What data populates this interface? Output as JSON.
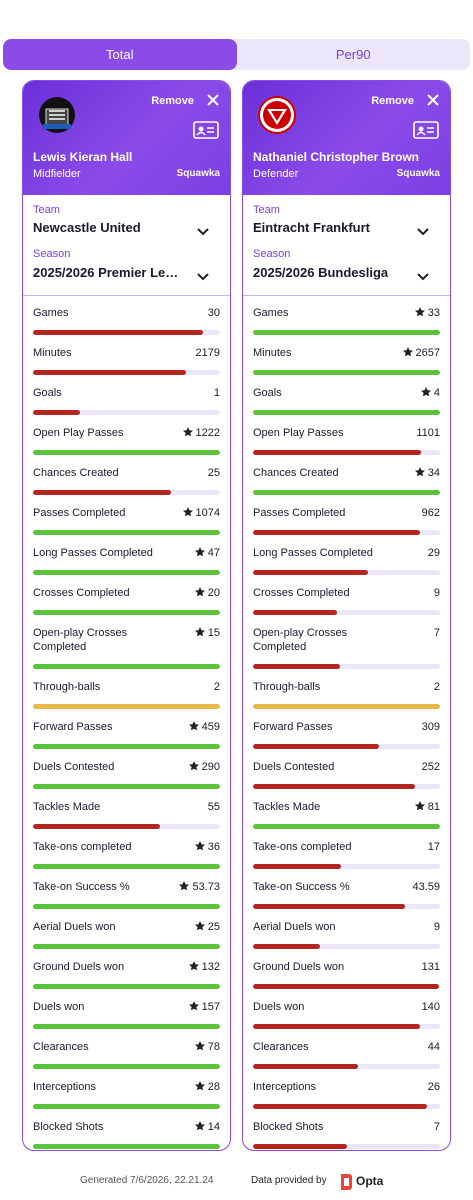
{
  "tabs": [
    "Total",
    "Per90"
  ],
  "stat_labels": [
    "Games",
    "Minutes",
    "Goals",
    "Open Play Passes",
    "Chances Created",
    "Passes Completed",
    "Long Passes Completed",
    "Crosses Completed",
    "Open-play Crosses Completed",
    "Through-balls",
    "Forward Passes",
    "Duels Contested",
    "Tackles Made",
    "Take-ons completed",
    "Take-on Success %",
    "Aerial Duels won",
    "Ground Duels won",
    "Duels won",
    "Clearances",
    "Interceptions",
    "Blocked Shots"
  ],
  "players": [
    {
      "remove": "Remove",
      "name": "Lewis Kieran Hall",
      "position": "Midfielder",
      "source": "Squawka",
      "team_label": "Team",
      "team": "Newcastle United",
      "season_label": "Season",
      "season": "2025/2026 Premier Le…",
      "values": [
        30,
        2179,
        1,
        1222,
        25,
        1074,
        47,
        20,
        15,
        2,
        459,
        290,
        55,
        36,
        53.73,
        25,
        132,
        157,
        78,
        28,
        14
      ]
    },
    {
      "remove": "Remove",
      "name": "Nathaniel Christopher Brown",
      "position": "Defender",
      "source": "Squawka",
      "team_label": "Team",
      "team": "Eintracht Frankfurt",
      "season_label": "Season",
      "season": "2025/2026 Bundesliga",
      "values": [
        33,
        2657,
        4,
        1101,
        34,
        962,
        29,
        9,
        7,
        2,
        309,
        252,
        81,
        17,
        43.59,
        9,
        131,
        140,
        44,
        26,
        7
      ]
    }
  ],
  "footer": {
    "generated": "Generated 7/6/2026, 22.21.24",
    "provider": "Data provided by",
    "provider_logo": "Opta"
  }
}
